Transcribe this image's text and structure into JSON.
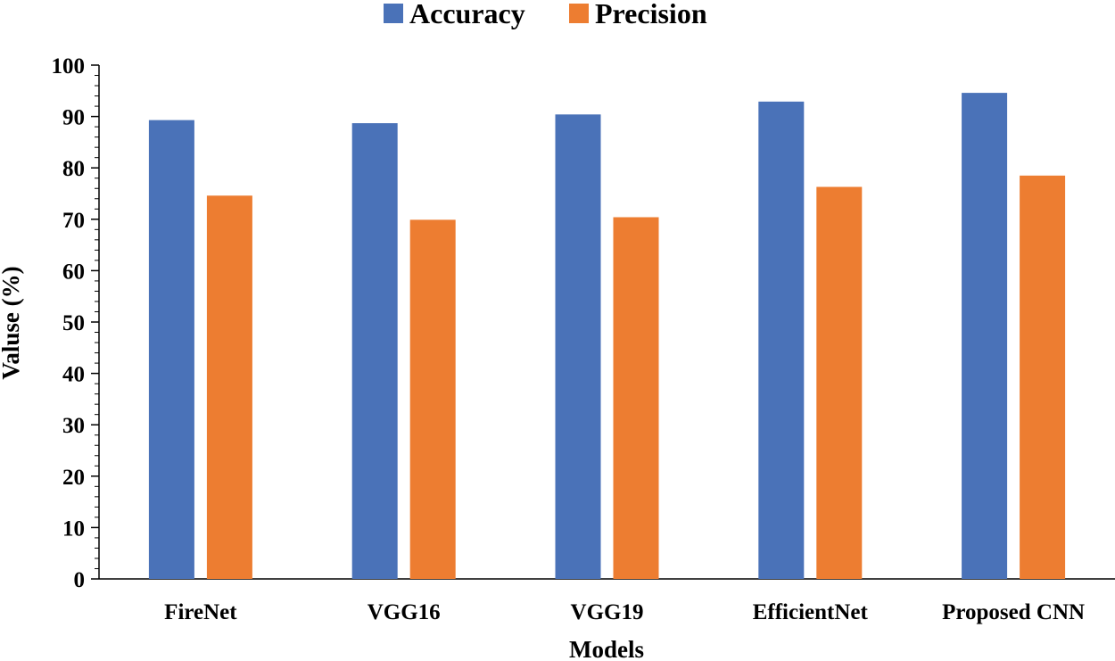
{
  "chart_data": {
    "type": "bar",
    "title": "",
    "xlabel": "Models",
    "ylabel": "Valuse (%)",
    "categories": [
      "FireNet",
      "VGG16",
      "VGG19",
      "EfficientNet",
      "Proposed CNN"
    ],
    "series": [
      {
        "name": "Accuracy",
        "color": "#4a72b8",
        "values": [
          89.3,
          88.7,
          90.4,
          92.9,
          94.6
        ]
      },
      {
        "name": "Precision",
        "color": "#ed7d31",
        "values": [
          74.6,
          69.9,
          70.4,
          76.3,
          78.5
        ]
      }
    ],
    "ylim": [
      0,
      100
    ],
    "yticks": [
      0,
      10,
      20,
      30,
      40,
      50,
      60,
      70,
      80,
      90,
      100
    ],
    "grid": false,
    "legend_position": "top-center"
  }
}
